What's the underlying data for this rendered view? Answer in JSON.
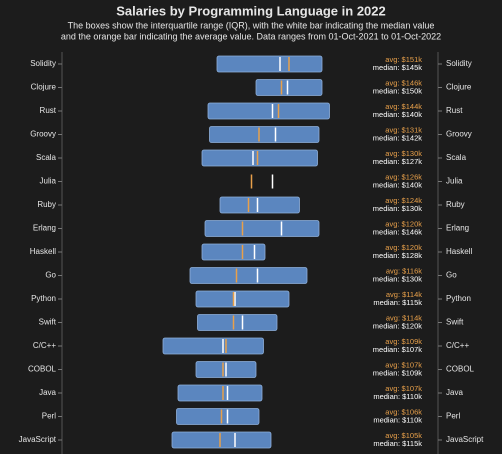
{
  "chart_data": {
    "type": "box",
    "title": "Salaries by Programming Language in 2022",
    "subtitle": [
      "The boxes show the interquartile range (IQR), with the white bar indicating the median value",
      "and the orange bar indicating the average value. Data ranges from 01-Oct-2021 to 01-Oct-2022"
    ],
    "categories": [
      "Solidity",
      "Clojure",
      "Rust",
      "Groovy",
      "Scala",
      "Julia",
      "Ruby",
      "Erlang",
      "Haskell",
      "Go",
      "Python",
      "Swift",
      "C/C++",
      "COBOL",
      "Java",
      "Perl",
      "JavaScript"
    ],
    "lower": [
      103,
      129,
      97,
      98,
      93,
      null,
      105,
      95,
      93,
      85,
      89,
      90,
      67,
      89,
      77,
      76,
      73
    ],
    "upper": [
      173,
      173,
      178,
      171,
      170,
      null,
      158,
      171,
      135,
      163,
      151,
      143,
      134,
      129,
      133,
      131,
      139
    ],
    "median": [
      145,
      150,
      140,
      142,
      127,
      140,
      130,
      146,
      128,
      130,
      115,
      120,
      107,
      109,
      110,
      110,
      115
    ],
    "median_labels": [
      "median: $145k",
      "median: $150k",
      "median: $140k",
      "median: $142k",
      "median: $127k",
      "median: $140k",
      "median: $130k",
      "median: $146k",
      "median: $128k",
      "median: $130k",
      "median: $115k",
      "median: $120k",
      "median: $107k",
      "median: $109k",
      "median: $110k",
      "median: $110k",
      "median: $115k"
    ],
    "average": [
      151,
      146,
      144,
      131,
      130,
      126,
      124,
      120,
      120,
      116,
      114,
      114,
      109,
      107,
      107,
      106,
      105
    ],
    "average_labels": [
      "avg: $151k",
      "avg: $146k",
      "avg: $144k",
      "avg: $131k",
      "avg: $130k",
      "avg: $126k",
      "avg: $124k",
      "avg: $120k",
      "avg: $120k",
      "avg: $116k",
      "avg: $114k",
      "avg: $114k",
      "avg: $109k",
      "avg: $107k",
      "avg: $107k",
      "avg: $106k",
      "avg: $105k"
    ],
    "xlim": [
      -15,
      205
    ],
    "box_color": "#5b86bf",
    "median_color": "#ffffff",
    "average_color": "#e8a04a"
  }
}
